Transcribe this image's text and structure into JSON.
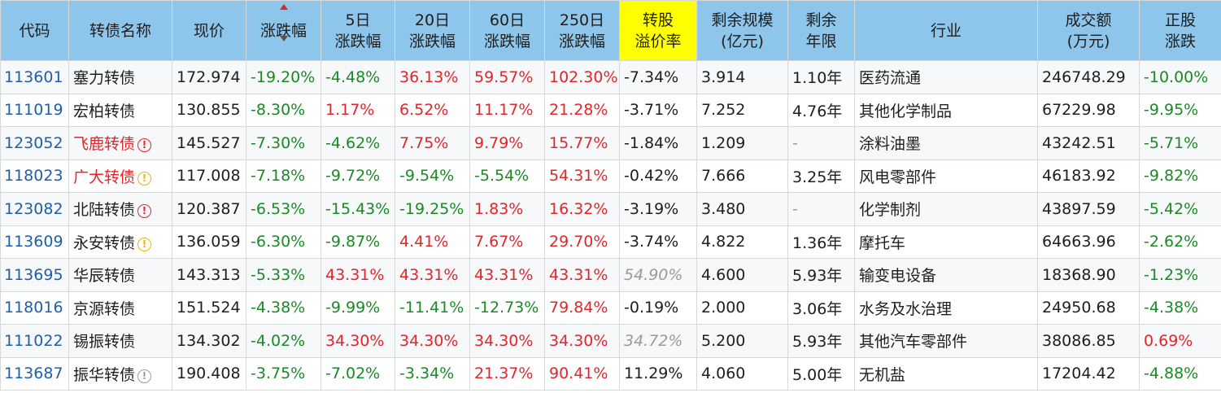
{
  "headers": {
    "code": "代码",
    "name": "转债名称",
    "price": "现价",
    "change": "涨跌幅",
    "d5_l1": "5日",
    "d5_l2": "涨跌幅",
    "d20_l1": "20日",
    "d20_l2": "涨跌幅",
    "d60_l1": "60日",
    "d60_l2": "涨跌幅",
    "d250_l1": "250日",
    "d250_l2": "涨跌幅",
    "premium_l1": "转股",
    "premium_l2": "溢价率",
    "scale_l1": "剩余规模",
    "scale_l2": "(亿元)",
    "years_l1": "剩余",
    "years_l2": "年限",
    "industry": "行业",
    "volume_l1": "成交额",
    "volume_l2": "(万元)",
    "stock_l1": "正股",
    "stock_l2": "涨跌"
  },
  "rows": [
    {
      "code": "113601",
      "name": "塞力转债",
      "badge": "",
      "price": "172.974",
      "change": "-19.20%",
      "d5": "-4.48%",
      "d20": "36.13%",
      "d60": "59.57%",
      "d250": "102.30%",
      "premium": "-7.34%",
      "scale": "3.914",
      "years": "1.10年",
      "industry": "医药流通",
      "volume": "246748.29",
      "stock": "-10.00%"
    },
    {
      "code": "111019",
      "name": "宏柏转债",
      "badge": "",
      "price": "130.855",
      "change": "-8.30%",
      "d5": "1.17%",
      "d20": "6.52%",
      "d60": "11.17%",
      "d250": "21.28%",
      "premium": "-3.71%",
      "scale": "7.252",
      "years": "4.76年",
      "industry": "其他化学制品",
      "volume": "67229.98",
      "stock": "-9.95%"
    },
    {
      "code": "123052",
      "name": "飞鹿转债",
      "badge": "!",
      "price": "145.527",
      "change": "-7.30%",
      "d5": "-4.62%",
      "d20": "7.75%",
      "d60": "9.79%",
      "d250": "15.77%",
      "premium": "-1.84%",
      "scale": "1.209",
      "years": "-",
      "industry": "涂料油墨",
      "volume": "43242.51",
      "stock": "-5.71%"
    },
    {
      "code": "118023",
      "name": "广大转债",
      "badge": "!",
      "price": "117.008",
      "change": "-7.18%",
      "d5": "-9.72%",
      "d20": "-9.54%",
      "d60": "-5.54%",
      "d250": "54.31%",
      "premium": "-0.42%",
      "scale": "7.666",
      "years": "3.25年",
      "industry": "风电零部件",
      "volume": "46183.92",
      "stock": "-9.82%"
    },
    {
      "code": "123082",
      "name": "北陆转债",
      "badge": "!",
      "price": "120.387",
      "change": "-6.53%",
      "d5": "-15.43%",
      "d20": "-19.25%",
      "d60": "1.83%",
      "d250": "16.32%",
      "premium": "-3.19%",
      "scale": "3.480",
      "years": "-",
      "industry": "化学制剂",
      "volume": "43897.59",
      "stock": "-5.42%"
    },
    {
      "code": "113609",
      "name": "永安转债",
      "badge": "!",
      "price": "136.059",
      "change": "-6.30%",
      "d5": "-9.87%",
      "d20": "4.41%",
      "d60": "7.67%",
      "d250": "29.70%",
      "premium": "-3.74%",
      "scale": "4.822",
      "years": "1.36年",
      "industry": "摩托车",
      "volume": "64663.96",
      "stock": "-2.62%"
    },
    {
      "code": "113695",
      "name": "华辰转债",
      "badge": "",
      "price": "143.313",
      "change": "-5.33%",
      "d5": "43.31%",
      "d20": "43.31%",
      "d60": "43.31%",
      "d250": "43.31%",
      "premium": "54.90%",
      "scale": "4.600",
      "years": "5.93年",
      "industry": "输变电设备",
      "volume": "18368.90",
      "stock": "-1.23%"
    },
    {
      "code": "118016",
      "name": "京源转债",
      "badge": "",
      "price": "151.524",
      "change": "-4.38%",
      "d5": "-9.99%",
      "d20": "-11.41%",
      "d60": "-12.73%",
      "d250": "79.84%",
      "premium": "-0.19%",
      "scale": "2.000",
      "years": "3.06年",
      "industry": "水务及水治理",
      "volume": "24950.68",
      "stock": "-4.38%"
    },
    {
      "code": "111022",
      "name": "锡振转债",
      "badge": "",
      "price": "134.302",
      "change": "-4.02%",
      "d5": "34.30%",
      "d20": "34.30%",
      "d60": "34.30%",
      "d250": "34.30%",
      "premium": "34.72%",
      "scale": "5.200",
      "years": "5.93年",
      "industry": "其他汽车零部件",
      "volume": "38086.85",
      "stock": "0.69%"
    },
    {
      "code": "113687",
      "name": "振华转债",
      "badge": "!",
      "price": "190.408",
      "change": "-3.75%",
      "d5": "-7.02%",
      "d20": "-3.34%",
      "d60": "21.37%",
      "d250": "90.41%",
      "premium": "11.29%",
      "scale": "4.060",
      "years": "5.00年",
      "industry": "无机盐",
      "volume": "17204.42",
      "stock": "-4.88%"
    }
  ],
  "row_styles": [
    {
      "name_red": false,
      "badge_color": "",
      "premium_muted": false
    },
    {
      "name_red": false,
      "badge_color": "",
      "premium_muted": false
    },
    {
      "name_red": true,
      "badge_color": "red",
      "premium_muted": false
    },
    {
      "name_red": true,
      "badge_color": "yellow",
      "premium_muted": false
    },
    {
      "name_red": false,
      "badge_color": "red",
      "premium_muted": false
    },
    {
      "name_red": false,
      "badge_color": "yellow",
      "premium_muted": false
    },
    {
      "name_red": false,
      "badge_color": "",
      "premium_muted": true
    },
    {
      "name_red": false,
      "badge_color": "",
      "premium_muted": false
    },
    {
      "name_red": false,
      "badge_color": "",
      "premium_muted": true
    },
    {
      "name_red": false,
      "badge_color": "gray",
      "premium_muted": false
    }
  ],
  "colors": {
    "header_bg": "#8ec5ea",
    "highlight_header": "#ffff00",
    "up": "#e0262b",
    "down": "#1a8a25",
    "code_link": "#1f5fa8"
  }
}
